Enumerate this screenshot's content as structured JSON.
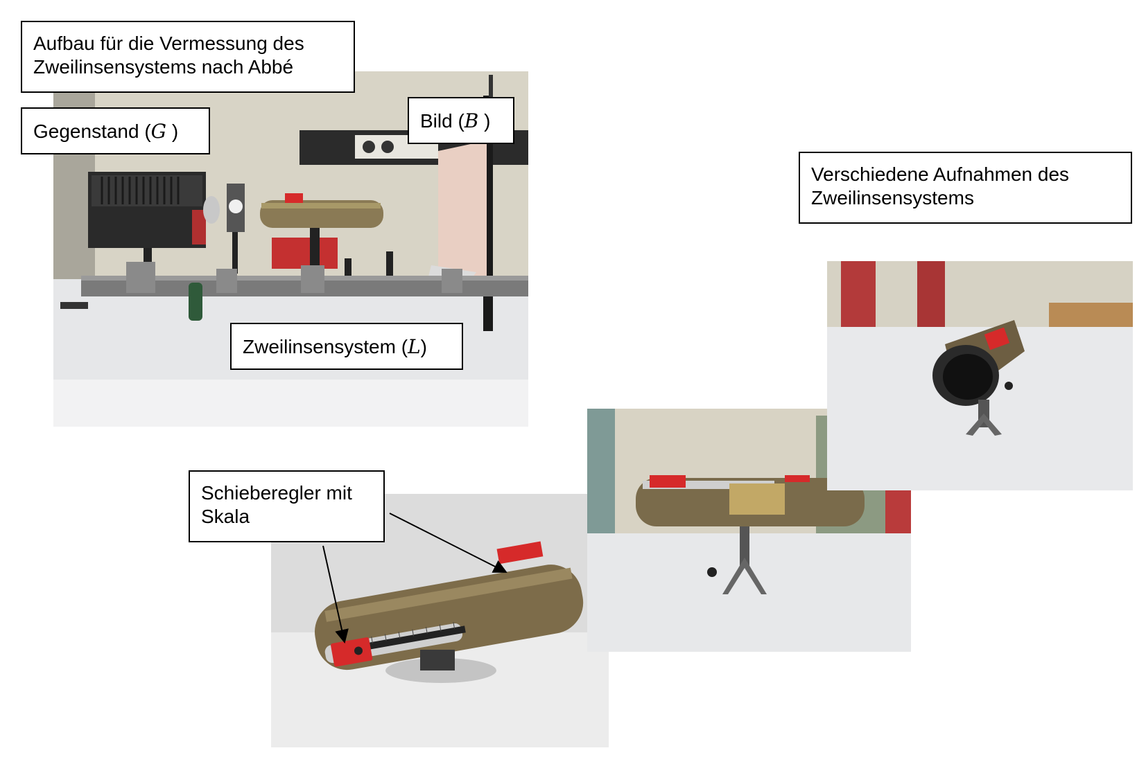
{
  "labels": {
    "title": {
      "line1": "Aufbau für die Vermessung des",
      "line2": "Zweilinsensystems nach Abbé"
    },
    "gegenstand": {
      "prefix": "Gegenstand (",
      "symbol": "G",
      "suffix": " )"
    },
    "bild": {
      "prefix": "Bild (",
      "symbol": "B",
      "suffix": " )"
    },
    "zweilinsensystem": {
      "prefix": "Zweilinsensystem (",
      "symbol": "L",
      "suffix": ")"
    },
    "verschiedene": {
      "line1": "Verschiedene Aufnahmen des",
      "line2": "Zweilinsensystems"
    },
    "schieberegler": {
      "line1": "Schieberegler mit",
      "line2": "Skala"
    }
  },
  "photos": [
    {
      "id": "setup",
      "subject": "optical bench with projector, object slide, two-lens tube and paper screen"
    },
    {
      "id": "closeup-slider",
      "subject": "brass tube with red slider and scale"
    },
    {
      "id": "side-view",
      "subject": "brass tube on tripod stand, side view"
    },
    {
      "id": "end-view",
      "subject": "brass tube on stand, view into the lens opening"
    }
  ],
  "colors": {
    "brass": "#8a7a55",
    "slider_red": "#d62a2a",
    "bench_steel": "#6f6f6f",
    "wall": "#d9d5c8",
    "table": "#e9eaec"
  }
}
